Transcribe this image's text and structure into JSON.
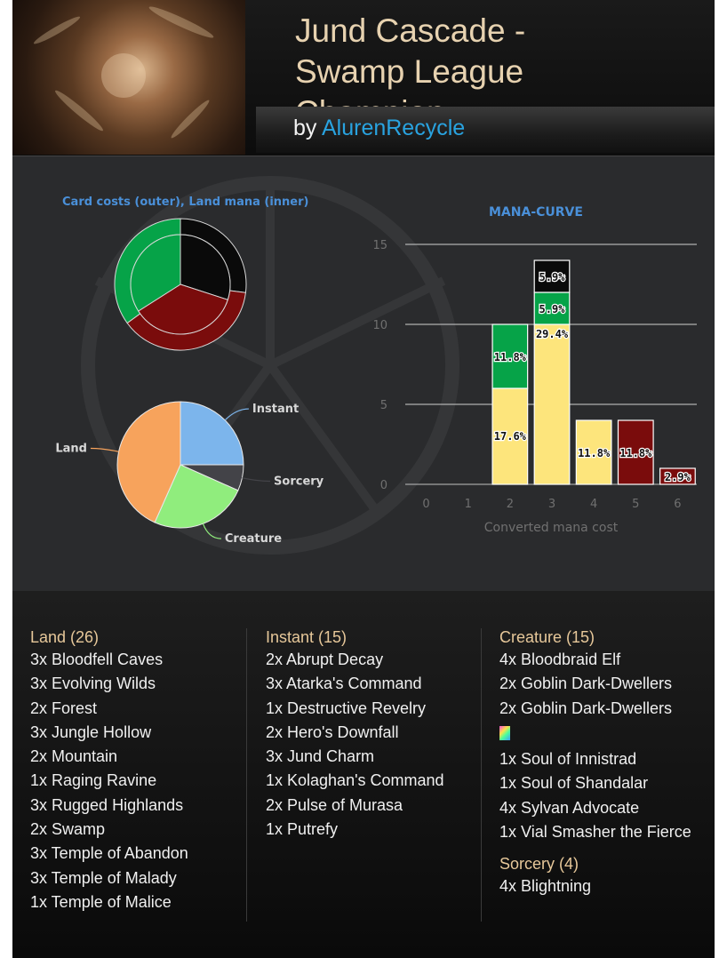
{
  "header": {
    "title": "Jund Cascade - Swamp League Champion",
    "by_label": "by",
    "author": "AlurenRecycle"
  },
  "charts": {
    "cost_pie_title": "Card costs (outer), Land mana (inner)",
    "type_pie_labels": [
      "Instant",
      "Sorcery",
      "Creature",
      "Land"
    ],
    "colors": {
      "black": "#0a0a0a",
      "green": "#06a348",
      "red": "#7a0c0c",
      "yellow": "#fde57c",
      "instant": "#7cb5ec",
      "sorcery": "#434348",
      "creature": "#90ed7d",
      "land": "#f7a35c",
      "title_blue": "#4a90d9"
    }
  },
  "chart_data": [
    {
      "type": "pie",
      "title": "Card costs (outer), Land mana (inner)",
      "rings": [
        {
          "name": "outer",
          "slices": [
            {
              "color": "black",
              "value": 27
            },
            {
              "color": "red",
              "value": 38
            },
            {
              "color": "green",
              "value": 35
            }
          ]
        },
        {
          "name": "inner",
          "slices": [
            {
              "color": "black",
              "value": 30
            },
            {
              "color": "red",
              "value": 36
            },
            {
              "color": "green",
              "value": 34
            }
          ]
        }
      ]
    },
    {
      "type": "pie",
      "title": "",
      "categories": [
        "Instant",
        "Sorcery",
        "Creature",
        "Land"
      ],
      "values": [
        15,
        4,
        15,
        26
      ]
    },
    {
      "type": "bar",
      "stacked": true,
      "title": "MANA-CURVE",
      "xlabel": "Converted mana cost",
      "ylabel": "",
      "categories": [
        "0",
        "1",
        "2",
        "3",
        "4",
        "5",
        "6"
      ],
      "ylim": [
        0,
        15
      ],
      "yticks": [
        0,
        5,
        10,
        15
      ],
      "grid": true,
      "series": [
        {
          "color": "yellow",
          "values": [
            0,
            0,
            6,
            10,
            4,
            0,
            0
          ],
          "labels": [
            "",
            "",
            "17.6%",
            "29.4%",
            "11.8%",
            "",
            ""
          ]
        },
        {
          "color": "green",
          "values": [
            0,
            0,
            4,
            2,
            0,
            0,
            0
          ],
          "labels": [
            "",
            "",
            "11.8%",
            "5.9%",
            "",
            "",
            ""
          ]
        },
        {
          "color": "red",
          "values": [
            0,
            0,
            0,
            0,
            0,
            4,
            1
          ],
          "labels": [
            "",
            "",
            "",
            "",
            "",
            "11.8%",
            "2.9%"
          ]
        },
        {
          "color": "black",
          "values": [
            0,
            0,
            0,
            2,
            0,
            0,
            0
          ],
          "labels": [
            "",
            "",
            "",
            "5.9%",
            "",
            "",
            ""
          ]
        }
      ]
    }
  ],
  "decklist": {
    "land": {
      "title": "Land (26)",
      "cards": [
        "3x Bloodfell Caves",
        "3x Evolving Wilds",
        "2x Forest",
        "3x Jungle Hollow",
        "2x Mountain",
        "1x Raging Ravine",
        "3x Rugged Highlands",
        "2x Swamp",
        "3x Temple of Abandon",
        "3x Temple of Malady",
        "1x Temple of Malice"
      ]
    },
    "instant": {
      "title": "Instant (15)",
      "cards": [
        "2x Abrupt Decay",
        "3x Atarka's Command",
        "1x Destructive Revelry",
        "2x Hero's Downfall",
        "3x Jund Charm",
        "1x Kolaghan's Command",
        "2x Pulse of Murasa",
        "1x Putrefy"
      ]
    },
    "creature": {
      "title": "Creature (15)",
      "cards": [
        "4x Bloodbraid Elf",
        "2x Goblin Dark-Dwellers",
        "2x Goblin Dark-Dwellers",
        "1x Soul of Innistrad",
        "1x Soul of Shandalar",
        "4x Sylvan Advocate",
        "1x Vial Smasher the Fierce"
      ]
    },
    "sorcery": {
      "title": "Sorcery (4)",
      "cards": [
        "4x Blightning"
      ]
    }
  }
}
